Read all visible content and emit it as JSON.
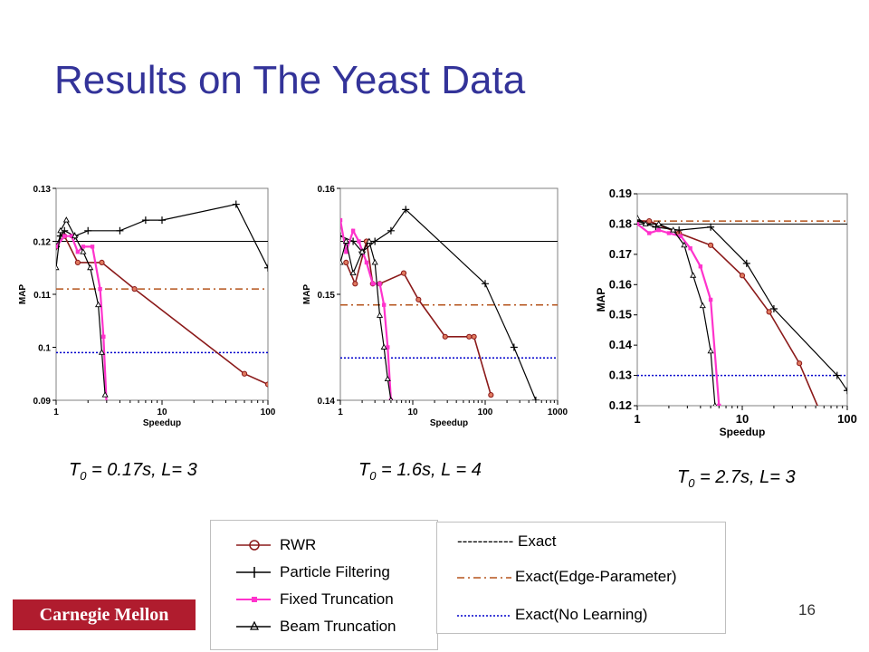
{
  "slide": {
    "title": "Results on The Yeast Data",
    "logo_text": "Carnegie Mellon",
    "page_number": "16",
    "colors": {
      "title": "#333399",
      "logo_bg": "#b01c2e"
    }
  },
  "captions": [
    {
      "base": "T",
      "sub": "0",
      "text": " = 0.17s, L= 3"
    },
    {
      "base": "T",
      "sub": "0",
      "text": " = 1.6s, L = 4"
    },
    {
      "base": "T",
      "sub": "0",
      "text": " = 2.7s, L= 3"
    }
  ],
  "legend": {
    "series": [
      {
        "label": "RWR",
        "color": "#8b1a1a",
        "marker": "circle"
      },
      {
        "label": "Particle Filtering",
        "color": "#000000",
        "marker": "plus"
      },
      {
        "label": "Fixed Truncation",
        "color": "#ff33cc",
        "marker": "square"
      },
      {
        "label": "Beam Truncation",
        "color": "#000000",
        "marker": "triangle"
      }
    ],
    "references": [
      {
        "label": "----------- Exact",
        "color": "#000000"
      },
      {
        "label": "Exact(Edge-Parameter)",
        "color": "#b5541c"
      },
      {
        "label": "Exact(No Learning)",
        "color": "#0000cc"
      }
    ]
  },
  "chart_data": [
    {
      "type": "line",
      "xlabel": "Speedup",
      "ylabel": "MAP",
      "xscale": "log",
      "xlim": [
        1,
        100
      ],
      "ylim": [
        0.09,
        0.13
      ],
      "xticks": [
        "1",
        "10",
        "100"
      ],
      "yticks": [
        "0.09",
        "0.1",
        "0.11",
        "0.12",
        "0.13"
      ],
      "reference_lines": {
        "exact": 0.12,
        "edge": 0.111,
        "nolearn": 0.099
      },
      "series": [
        {
          "legend": 0,
          "x": [
            1,
            1.2,
            1.6,
            2.7,
            5.5,
            60,
            100
          ],
          "y": [
            0.119,
            0.121,
            0.116,
            0.116,
            0.111,
            0.095,
            0.093
          ]
        },
        {
          "legend": 1,
          "x": [
            1,
            1.1,
            1.2,
            1.5,
            2,
            4,
            7,
            10,
            50,
            100
          ],
          "y": [
            0.119,
            0.121,
            0.122,
            0.121,
            0.122,
            0.122,
            0.124,
            0.124,
            0.127,
            0.115
          ]
        },
        {
          "legend": 2,
          "x": [
            1,
            1.2,
            1.4,
            1.6,
            1.8,
            2.2,
            2.6,
            2.8,
            3
          ],
          "y": [
            0.119,
            0.121,
            0.121,
            0.118,
            0.119,
            0.119,
            0.111,
            0.102,
            0.089
          ]
        },
        {
          "legend": 3,
          "x": [
            1,
            1.1,
            1.25,
            1.5,
            1.8,
            2.1,
            2.5,
            2.7,
            2.9
          ],
          "y": [
            0.115,
            0.122,
            0.124,
            0.121,
            0.118,
            0.115,
            0.108,
            0.099,
            0.091
          ]
        }
      ]
    },
    {
      "type": "line",
      "xlabel": "Speedup",
      "ylabel": "MAP",
      "xscale": "log",
      "xlim": [
        1,
        1000
      ],
      "ylim": [
        0.14,
        0.16
      ],
      "xticks": [
        "1",
        "10",
        "100",
        "1000"
      ],
      "yticks": [
        "0.14",
        "0.15",
        "0.16"
      ],
      "reference_lines": {
        "exact": 0.155,
        "edge": 0.149,
        "nolearn": 0.144
      },
      "series": [
        {
          "legend": 0,
          "x": [
            1.2,
            1.6,
            2.3,
            2.8,
            3.5,
            7.5,
            12,
            28,
            60,
            70,
            120
          ],
          "y": [
            0.153,
            0.151,
            0.155,
            0.151,
            0.151,
            0.152,
            0.1495,
            0.146,
            0.146,
            0.146,
            0.1405
          ]
        },
        {
          "legend": 1,
          "x": [
            1,
            1.5,
            2,
            3,
            5,
            8,
            100,
            250,
            500
          ],
          "y": [
            0.1555,
            0.155,
            0.154,
            0.155,
            0.156,
            0.158,
            0.151,
            0.145,
            0.14
          ]
        },
        {
          "legend": 2,
          "x": [
            1,
            1.2,
            1.5,
            1.8,
            2.3,
            2.8,
            3.5,
            4,
            4.5,
            5
          ],
          "y": [
            0.157,
            0.154,
            0.156,
            0.155,
            0.153,
            0.151,
            0.151,
            0.149,
            0.145,
            0.14
          ]
        },
        {
          "legend": 3,
          "x": [
            1,
            1.2,
            1.5,
            2,
            2.5,
            3,
            3.5,
            4,
            4.5,
            5
          ],
          "y": [
            0.153,
            0.155,
            0.152,
            0.154,
            0.155,
            0.153,
            0.148,
            0.145,
            0.142,
            0.14
          ]
        }
      ]
    },
    {
      "type": "line",
      "xlabel": "Speedup",
      "ylabel": "MAP",
      "xscale": "log",
      "xlim": [
        1,
        100
      ],
      "ylim": [
        0.12,
        0.19
      ],
      "xticks": [
        "1",
        "10",
        "100"
      ],
      "yticks": [
        "0.12",
        "0.13",
        "0.14",
        "0.15",
        "0.16",
        "0.17",
        "0.18",
        "0.19"
      ],
      "reference_lines": {
        "exact": 0.18,
        "edge": 0.181,
        "nolearn": 0.13
      },
      "series": [
        {
          "legend": 0,
          "x": [
            1,
            1.3,
            2.5,
            5,
            10,
            18,
            35,
            55
          ],
          "y": [
            0.181,
            0.181,
            0.177,
            0.173,
            0.163,
            0.151,
            0.134,
            0.118
          ]
        },
        {
          "legend": 1,
          "x": [
            1,
            1.5,
            2.5,
            5,
            11,
            20,
            80,
            100
          ],
          "y": [
            0.181,
            0.179,
            0.178,
            0.179,
            0.167,
            0.152,
            0.13,
            0.125
          ]
        },
        {
          "legend": 2,
          "x": [
            1,
            1.3,
            1.6,
            2,
            2.6,
            3.2,
            4,
            5,
            6
          ],
          "y": [
            0.18,
            0.177,
            0.178,
            0.177,
            0.176,
            0.172,
            0.166,
            0.155,
            0.12
          ]
        },
        {
          "legend": 3,
          "x": [
            1,
            1.2,
            1.6,
            2.2,
            2.8,
            3.4,
            4.2,
            5,
            5.5
          ],
          "y": [
            0.182,
            0.18,
            0.18,
            0.178,
            0.173,
            0.163,
            0.153,
            0.138,
            0.12
          ]
        }
      ]
    }
  ]
}
